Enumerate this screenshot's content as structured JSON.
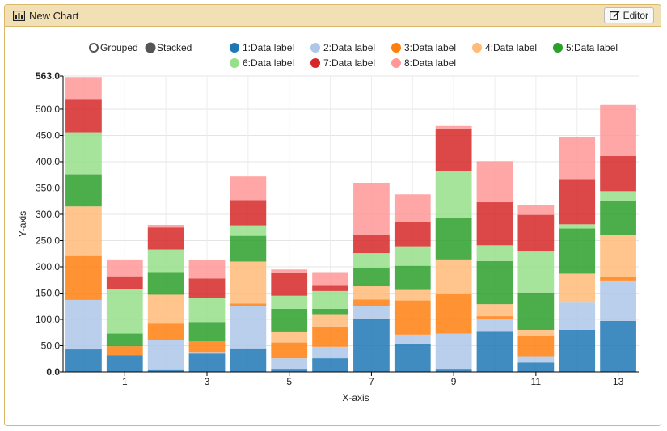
{
  "header": {
    "title": "New Chart",
    "editor_label": "Editor",
    "chart_icon": "bar-chart-icon",
    "editor_icon": "edit-icon"
  },
  "controls": {
    "grouped_label": "Grouped",
    "stacked_label": "Stacked",
    "selected": "stacked"
  },
  "chart_data": {
    "type": "bar",
    "stacked": true,
    "categories": [
      "",
      "1",
      "",
      "3",
      "",
      "5",
      "",
      "7",
      "",
      "9",
      "",
      "11",
      "",
      "13"
    ],
    "xlabel": "X-axis",
    "ylabel": "Y-axis",
    "ylim": [
      0,
      563
    ],
    "yticks": [
      "0.0",
      "50.0",
      "100.0",
      "150.0",
      "200.0",
      "250.0",
      "300.0",
      "350.0",
      "400.0",
      "450.0",
      "500.0",
      "563.0"
    ],
    "grid": true,
    "legend_position": "top",
    "series": [
      {
        "name": "1:Data label",
        "color": "#1f77b4",
        "values": [
          43,
          32,
          5,
          35,
          45,
          6,
          26,
          100,
          53,
          6,
          78,
          18,
          80,
          97
        ]
      },
      {
        "name": "2:Data label",
        "color": "#aec7e8",
        "values": [
          94,
          0,
          55,
          3,
          80,
          20,
          22,
          25,
          18,
          67,
          22,
          12,
          52,
          77
        ]
      },
      {
        "name": "3:Data label",
        "color": "#ff7f0e",
        "values": [
          85,
          17,
          32,
          20,
          5,
          30,
          37,
          13,
          65,
          75,
          6,
          38,
          0,
          7
        ]
      },
      {
        "name": "4:Data label",
        "color": "#ffbb78",
        "values": [
          93,
          0,
          55,
          0,
          80,
          21,
          25,
          25,
          20,
          66,
          23,
          12,
          55,
          79
        ]
      },
      {
        "name": "5:Data label",
        "color": "#2ca02c",
        "values": [
          61,
          24,
          43,
          37,
          49,
          43,
          10,
          34,
          46,
          79,
          82,
          71,
          86,
          66
        ]
      },
      {
        "name": "6:Data label",
        "color": "#98df8a",
        "values": [
          80,
          85,
          43,
          45,
          20,
          25,
          34,
          29,
          37,
          90,
          30,
          78,
          8,
          18
        ]
      },
      {
        "name": "7:Data label",
        "color": "#d62728",
        "values": [
          62,
          24,
          42,
          38,
          48,
          44,
          10,
          34,
          46,
          79,
          82,
          70,
          86,
          67
        ]
      },
      {
        "name": "8:Data label",
        "color": "#ff9896",
        "values": [
          43,
          32,
          5,
          35,
          45,
          6,
          26,
          100,
          53,
          6,
          78,
          18,
          80,
          97
        ]
      }
    ]
  }
}
